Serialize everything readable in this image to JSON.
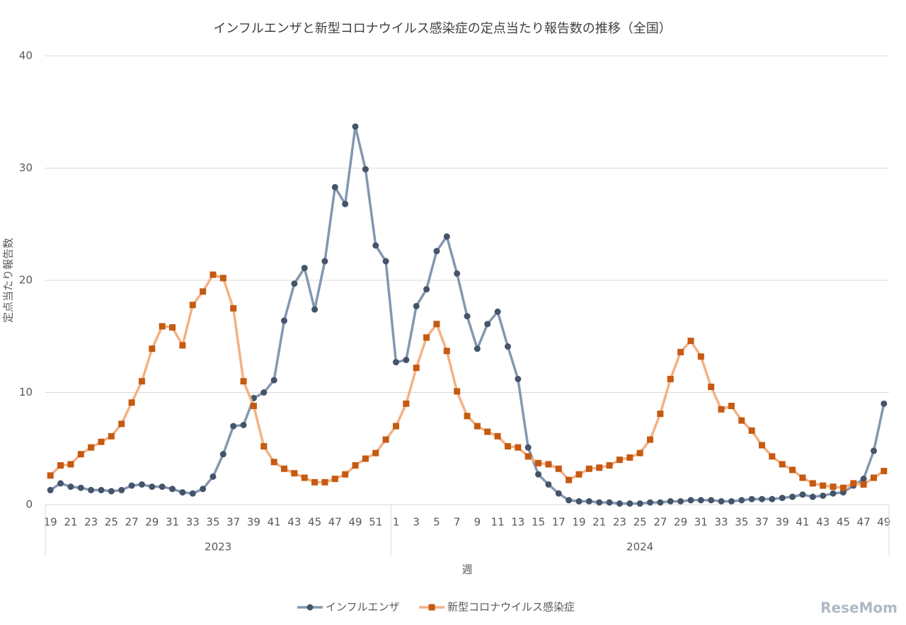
{
  "chart_data": {
    "type": "line",
    "title": "インフルエンザと新型コロナウイルス感染症の定点当たり報告数の推移（全国）",
    "y_label": "定点当たり報告数",
    "x_label": "週",
    "years": [
      "2023",
      "2024"
    ],
    "categories": [
      "19",
      null,
      "21",
      null,
      "23",
      null,
      "25",
      null,
      "27",
      null,
      "29",
      null,
      "31",
      null,
      "33",
      null,
      "35",
      null,
      "37",
      null,
      "39",
      null,
      "41",
      null,
      "43",
      null,
      "45",
      null,
      "47",
      null,
      "49",
      null,
      "51",
      null,
      "1",
      null,
      "3",
      null,
      "5",
      null,
      "7",
      null,
      "9",
      null,
      "11",
      null,
      "13",
      null,
      "15",
      null,
      "17",
      null,
      "19",
      null,
      "21",
      null,
      "23",
      null,
      "25",
      null,
      "27",
      null,
      "29",
      null,
      "31",
      null,
      "33",
      null,
      "35",
      null,
      "37",
      null,
      "39",
      null,
      "41",
      null,
      "43",
      null,
      "45",
      null,
      "47",
      null,
      "49"
    ],
    "series": [
      {
        "name": "インフルエンザ",
        "color": "#8497b0",
        "marker_color": "#44546a",
        "marker": "circle",
        "values": [
          1.3,
          1.9,
          1.6,
          1.5,
          1.3,
          1.3,
          1.2,
          1.3,
          1.7,
          1.8,
          1.6,
          1.6,
          1.4,
          1.1,
          1.0,
          1.4,
          2.5,
          4.5,
          7.0,
          7.1,
          9.5,
          10.0,
          11.1,
          16.4,
          19.7,
          21.1,
          17.4,
          21.7,
          28.3,
          26.8,
          33.7,
          29.9,
          23.1,
          21.7,
          12.7,
          12.9,
          17.7,
          19.2,
          22.6,
          23.9,
          20.6,
          16.8,
          13.9,
          16.1,
          17.2,
          14.1,
          11.2,
          5.1,
          2.7,
          1.8,
          1.0,
          0.4,
          0.3,
          0.3,
          0.2,
          0.2,
          0.1,
          0.1,
          0.1,
          0.2,
          0.2,
          0.3,
          0.3,
          0.4,
          0.4,
          0.4,
          0.3,
          0.3,
          0.4,
          0.5,
          0.5,
          0.5,
          0.6,
          0.7,
          0.9,
          0.7,
          0.8,
          1.0,
          1.1,
          1.7,
          2.3,
          4.8,
          9.0
        ]
      },
      {
        "name": "新型コロナウイルス感染症",
        "color": "#f4b183",
        "marker_color": "#c55a11",
        "marker": "square",
        "values": [
          2.6,
          3.5,
          3.6,
          4.5,
          5.1,
          5.6,
          6.1,
          7.2,
          9.1,
          11.0,
          13.9,
          15.9,
          15.8,
          14.2,
          17.8,
          19.0,
          20.5,
          20.2,
          17.5,
          11.0,
          8.8,
          5.2,
          3.8,
          3.2,
          2.8,
          2.4,
          2.0,
          2.0,
          2.3,
          2.7,
          3.5,
          4.1,
          4.6,
          5.8,
          7.0,
          9.0,
          12.2,
          14.9,
          16.1,
          13.7,
          10.1,
          7.9,
          7.0,
          6.5,
          6.1,
          5.2,
          5.1,
          4.3,
          3.7,
          3.6,
          3.2,
          2.2,
          2.7,
          3.2,
          3.3,
          3.5,
          4.0,
          4.2,
          4.6,
          5.8,
          8.1,
          11.2,
          13.6,
          14.6,
          13.2,
          10.5,
          8.5,
          8.8,
          7.5,
          6.6,
          5.3,
          4.3,
          3.6,
          3.1,
          2.4,
          1.9,
          1.7,
          1.6,
          1.5,
          1.9,
          1.8,
          2.4,
          3.0
        ]
      }
    ],
    "ylim": [
      0,
      40
    ],
    "yticks": [
      0,
      10,
      20,
      30,
      40
    ],
    "grid": true,
    "legend": "bottom",
    "watermark": "ReseMom"
  }
}
